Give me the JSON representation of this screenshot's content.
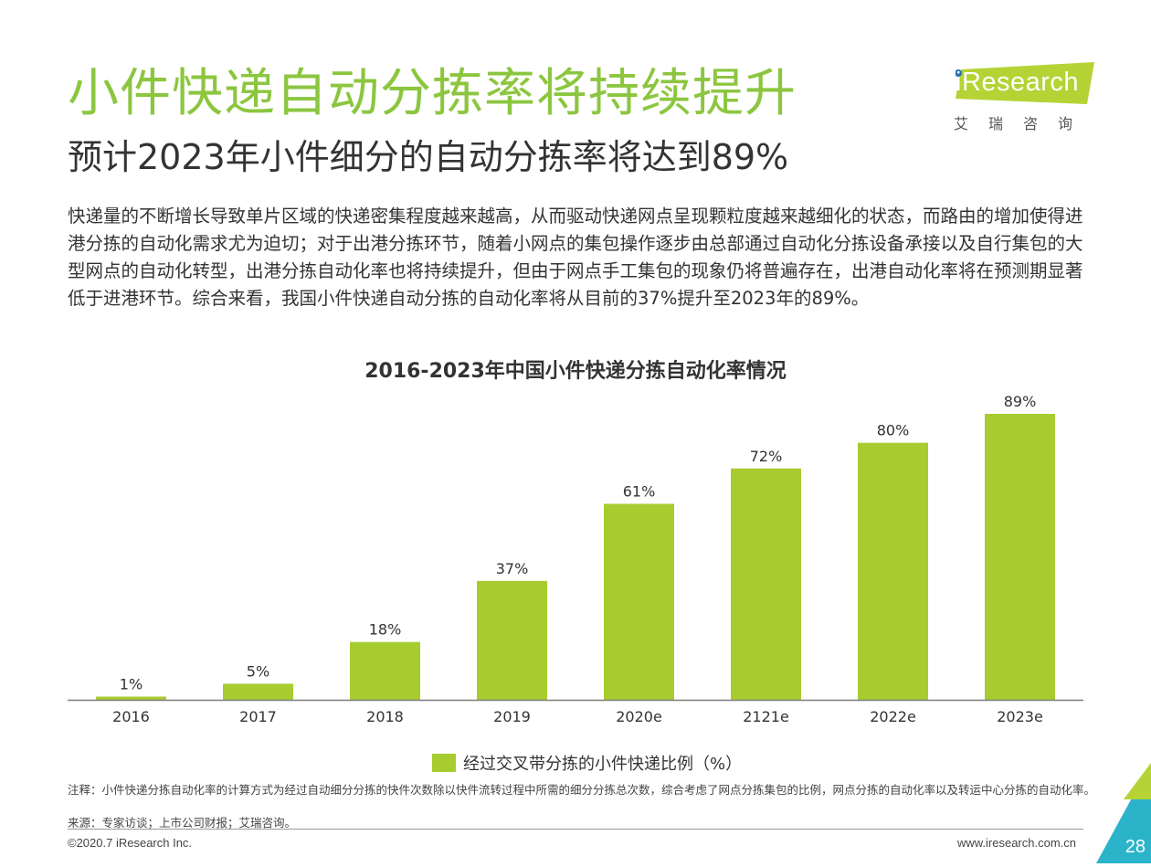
{
  "page": {
    "title": "小件快递自动分拣率将持续提升",
    "subtitle": "预计2023年小件细分的自动分拣率将达到89%",
    "body": "快递量的不断增长导致单片区域的快递密集程度越来越高，从而驱动快递网点呈现颗粒度越来越细化的状态，而路由的增加使得进港分拣的自动化需求尤为迫切；对于出港分拣环节，随着小网点的集包操作逐步由总部通过自动化分拣设备承接以及自行集包的大型网点的自动化转型，出港分拣自动化率也将持续提升，但由于网点手工集包的现象仍将普遍存在，出港自动化率将在预测期显著低于进港环节。综合来看，我国小件快递自动分拣的自动化率将从目前的37%提升至2023年的89%。",
    "note": "注释：小件快递分拣自动化率的计算方式为经过自动细分分拣的快件次数除以快件流转过程中所需的细分分拣总次数，综合考虑了网点分拣集包的比例，网点分拣的自动化率以及转运中心分拣的自动化率。",
    "source": "来源：专家访谈；上市公司财报；艾瑞咨询。",
    "copyright": "©2020.7 iResearch Inc.",
    "website": "www.iresearch.com.cn",
    "page_number": "28"
  },
  "logo": {
    "name": "iResearch",
    "cn": "艾瑞咨询"
  },
  "colors": {
    "title_green": "#8cc63f",
    "bar_green": "#a7cc2f",
    "logo_green": "#b5d334",
    "corner_teal": "#2bb3c9"
  },
  "chart_data": {
    "type": "bar",
    "title": "2016-2023年中国小件快递分拣自动化率情况",
    "categories": [
      "2016",
      "2017",
      "2018",
      "2019",
      "2020e",
      "2121e",
      "2022e",
      "2023e"
    ],
    "series": [
      {
        "name": "经过交叉带分拣的小件快递比例（%）",
        "values": [
          1,
          5,
          18,
          37,
          61,
          72,
          80,
          89
        ],
        "labels": [
          "1%",
          "5%",
          "18%",
          "37%",
          "61%",
          "72%",
          "80%",
          "89%"
        ]
      }
    ],
    "ylim": [
      0,
      89
    ],
    "grid": false,
    "legend_position": "bottom"
  }
}
